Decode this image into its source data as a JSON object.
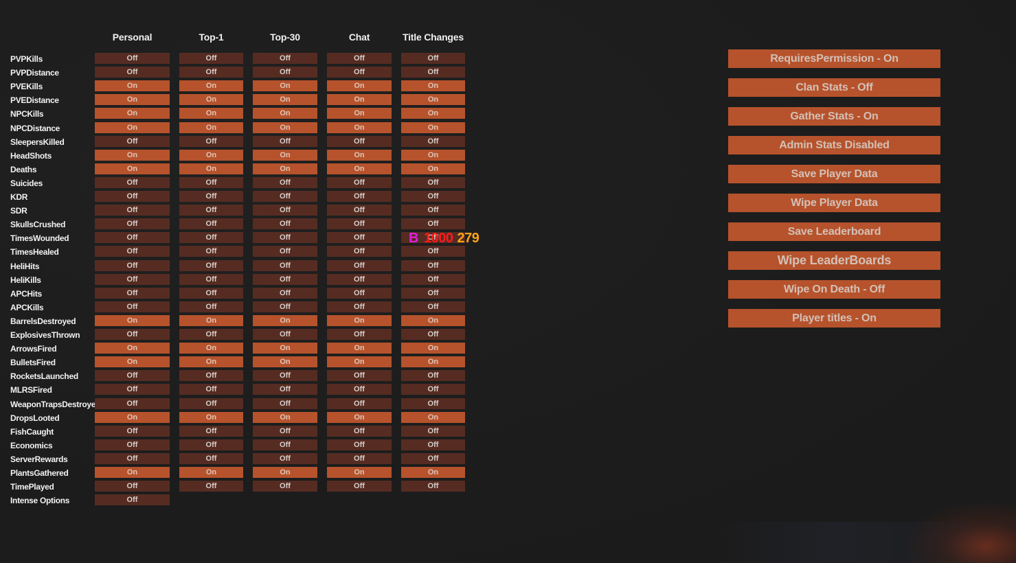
{
  "columns": [
    "Personal",
    "Top-1",
    "Top-30",
    "Chat",
    "Title Changes"
  ],
  "rows": [
    {
      "label": "PVPKills",
      "values": [
        "Off",
        "Off",
        "Off",
        "Off",
        "Off"
      ]
    },
    {
      "label": "PVPDistance",
      "values": [
        "Off",
        "Off",
        "Off",
        "Off",
        "Off"
      ]
    },
    {
      "label": "PVEKills",
      "values": [
        "On",
        "On",
        "On",
        "On",
        "On"
      ]
    },
    {
      "label": "PVEDistance",
      "values": [
        "On",
        "On",
        "On",
        "On",
        "On"
      ]
    },
    {
      "label": "NPCKills",
      "values": [
        "On",
        "On",
        "On",
        "On",
        "On"
      ]
    },
    {
      "label": "NPCDistance",
      "values": [
        "On",
        "On",
        "On",
        "On",
        "On"
      ]
    },
    {
      "label": "SleepersKilled",
      "values": [
        "Off",
        "Off",
        "Off",
        "Off",
        "Off"
      ]
    },
    {
      "label": "HeadShots",
      "values": [
        "On",
        "On",
        "On",
        "On",
        "On"
      ]
    },
    {
      "label": "Deaths",
      "values": [
        "On",
        "On",
        "On",
        "On",
        "On"
      ]
    },
    {
      "label": "Suicides",
      "values": [
        "Off",
        "Off",
        "Off",
        "Off",
        "Off"
      ]
    },
    {
      "label": "KDR",
      "values": [
        "Off",
        "Off",
        "Off",
        "Off",
        "Off"
      ]
    },
    {
      "label": "SDR",
      "values": [
        "Off",
        "Off",
        "Off",
        "Off",
        "Off"
      ]
    },
    {
      "label": "SkullsCrushed",
      "values": [
        "Off",
        "Off",
        "Off",
        "Off",
        "Off"
      ]
    },
    {
      "label": "TimesWounded",
      "values": [
        "Off",
        "Off",
        "Off",
        "Off",
        "Off"
      ]
    },
    {
      "label": "TimesHealed",
      "values": [
        "Off",
        "Off",
        "Off",
        "Off",
        "Off"
      ]
    },
    {
      "label": "HeliHits",
      "values": [
        "Off",
        "Off",
        "Off",
        "Off",
        "Off"
      ]
    },
    {
      "label": "HeliKills",
      "values": [
        "Off",
        "Off",
        "Off",
        "Off",
        "Off"
      ]
    },
    {
      "label": "APCHits",
      "values": [
        "Off",
        "Off",
        "Off",
        "Off",
        "Off"
      ]
    },
    {
      "label": "APCKills",
      "values": [
        "Off",
        "Off",
        "Off",
        "Off",
        "Off"
      ]
    },
    {
      "label": "BarrelsDestroyed",
      "values": [
        "On",
        "On",
        "On",
        "On",
        "On"
      ]
    },
    {
      "label": "ExplosivesThrown",
      "values": [
        "Off",
        "Off",
        "Off",
        "Off",
        "Off"
      ]
    },
    {
      "label": "ArrowsFired",
      "values": [
        "On",
        "On",
        "On",
        "On",
        "On"
      ]
    },
    {
      "label": "BulletsFired",
      "values": [
        "On",
        "On",
        "On",
        "On",
        "On"
      ]
    },
    {
      "label": "RocketsLaunched",
      "values": [
        "Off",
        "Off",
        "Off",
        "Off",
        "Off"
      ]
    },
    {
      "label": "MLRSFired",
      "values": [
        "Off",
        "Off",
        "Off",
        "Off",
        "Off"
      ]
    },
    {
      "label": "WeaponTrapsDestroyed",
      "values": [
        "Off",
        "Off",
        "Off",
        "Off",
        "Off"
      ]
    },
    {
      "label": "DropsLooted",
      "values": [
        "On",
        "On",
        "On",
        "On",
        "On"
      ]
    },
    {
      "label": "FishCaught",
      "values": [
        "Off",
        "Off",
        "Off",
        "Off",
        "Off"
      ]
    },
    {
      "label": "Economics",
      "values": [
        "Off",
        "Off",
        "Off",
        "Off",
        "Off"
      ]
    },
    {
      "label": "ServerRewards",
      "values": [
        "Off",
        "Off",
        "Off",
        "Off",
        "Off"
      ]
    },
    {
      "label": "PlantsGathered",
      "values": [
        "On",
        "On",
        "On",
        "On",
        "On"
      ]
    },
    {
      "label": "TimePlayed",
      "values": [
        "Off",
        "Off",
        "Off",
        "Off",
        "Off"
      ]
    },
    {
      "label": "Intense Options",
      "values": [
        "Off"
      ]
    }
  ],
  "settings_buttons": [
    "RequiresPermission - On",
    "Clan Stats - Off",
    "Gather Stats - On",
    "Admin Stats Disabled",
    "Save Player Data",
    "Wipe Player Data",
    "Save Leaderboard",
    "Wipe LeaderBoards",
    "Wipe On Death - Off",
    "Player titles - On"
  ],
  "overlay": {
    "b": "B",
    "red": "1000",
    "orange": "279"
  },
  "colors": {
    "background": "#1d1d1d",
    "on": "#b6532c",
    "off": "#562c22",
    "button": "#b6532c",
    "overlay_b": "#e020e0",
    "overlay_red": "#ff1a1a",
    "overlay_orange": "#ffa31a"
  }
}
